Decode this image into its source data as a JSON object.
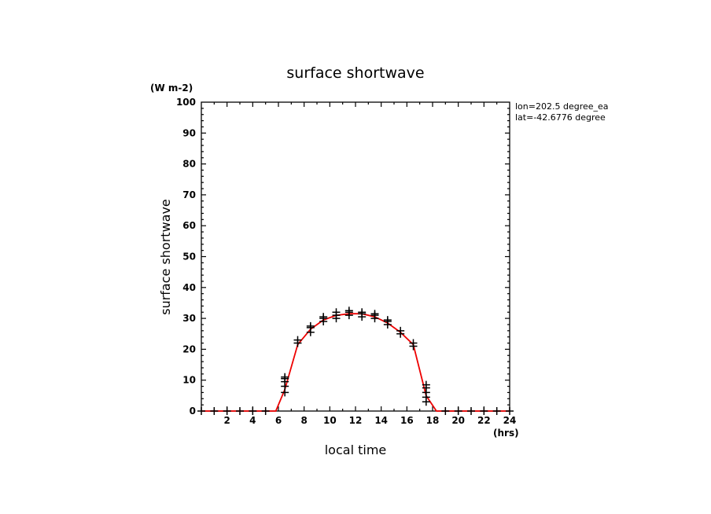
{
  "chart_data": {
    "type": "line",
    "title": "surface shortwave",
    "units": "(W m-2)",
    "xlabel": "local time",
    "xunits": "(hrs)",
    "ylabel": "surface shortwave",
    "annotations": [
      "lon=202.5 degree_ea",
      "lat=-42.6776 degree"
    ],
    "xlim": [
      0,
      24
    ],
    "ylim": [
      0,
      100
    ],
    "xticks": [
      2,
      4,
      6,
      8,
      10,
      12,
      14,
      16,
      18,
      20,
      22,
      24
    ],
    "yticks": [
      0,
      10,
      20,
      30,
      40,
      50,
      60,
      70,
      80,
      90,
      100
    ],
    "grid": false,
    "line_color": "#ee0000",
    "marker_color": "#000000",
    "line": {
      "x": [
        0,
        1,
        2,
        3,
        4,
        5,
        5.8,
        6.5,
        7.5,
        8.5,
        9.5,
        10.5,
        11.5,
        12.5,
        13.5,
        14.5,
        15.5,
        16.5,
        17.5,
        18.3,
        19,
        20,
        21,
        22,
        23,
        24
      ],
      "y": [
        0,
        0,
        0,
        0,
        0,
        0,
        0,
        7,
        21.5,
        26.5,
        29.5,
        31,
        31.5,
        31.5,
        30.5,
        28.5,
        25.5,
        21.5,
        5,
        0,
        0,
        0,
        0,
        0,
        0,
        0
      ]
    },
    "markers": {
      "x": [
        0,
        1,
        2,
        3,
        4,
        5,
        6.5,
        6.5,
        6.5,
        6.5,
        6.5,
        7.5,
        7.5,
        8.5,
        8.5,
        8.5,
        9.5,
        9.5,
        9.5,
        10.5,
        10.5,
        10.5,
        11.5,
        11.5,
        11.5,
        12.5,
        12.5,
        12.5,
        13.5,
        13.5,
        13.5,
        14.5,
        14.5,
        14.5,
        15.5,
        15.5,
        16.5,
        16.5,
        17.5,
        17.5,
        17.5,
        17.5,
        17.5,
        19,
        20,
        21,
        22,
        23,
        24
      ],
      "y": [
        0,
        0,
        0,
        0,
        0,
        0,
        6,
        8,
        9.5,
        10.5,
        11,
        22,
        23,
        25.5,
        27,
        27.5,
        29,
        30,
        30.5,
        30,
        31,
        32,
        31,
        32,
        32.5,
        30.5,
        31.5,
        32,
        30,
        31,
        31.5,
        28,
        29,
        29.5,
        25,
        26,
        21,
        22,
        3,
        4.5,
        6,
        7.5,
        8.5,
        0,
        0,
        0,
        0,
        0,
        0
      ]
    }
  }
}
